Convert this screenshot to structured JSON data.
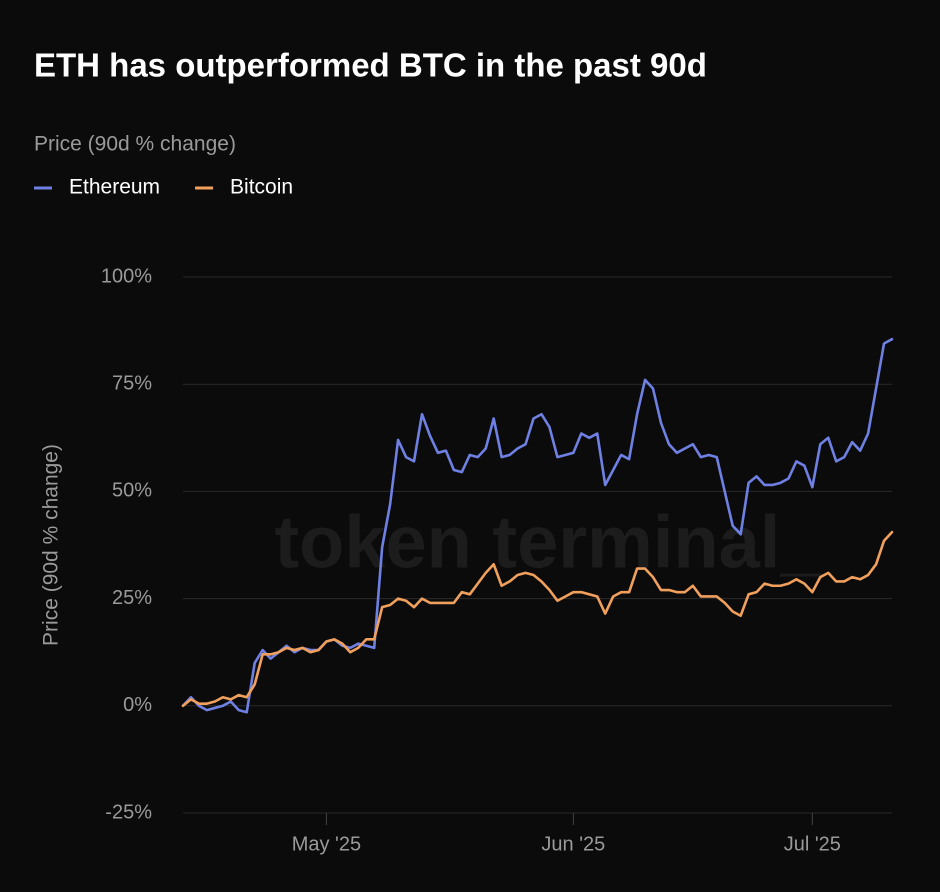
{
  "chart_data": {
    "type": "line",
    "title": "ETH has outperformed BTC in the past 90d",
    "subtitle": "Price (90d % change)",
    "y_label": "Price (90d % change)",
    "watermark": "token terminal_",
    "categories": [
      null,
      null,
      null,
      null,
      null,
      null,
      null,
      null,
      null,
      null,
      null,
      null,
      null,
      null,
      null,
      null,
      null,
      null,
      "May '25",
      null,
      null,
      null,
      null,
      null,
      null,
      null,
      null,
      null,
      null,
      null,
      null,
      null,
      null,
      null,
      null,
      null,
      null,
      null,
      null,
      null,
      null,
      null,
      null,
      null,
      null,
      null,
      null,
      null,
      null,
      "Jun '25",
      null,
      null,
      null,
      null,
      null,
      null,
      null,
      null,
      null,
      null,
      null,
      null,
      null,
      null,
      null,
      null,
      null,
      null,
      null,
      null,
      null,
      null,
      null,
      null,
      null,
      null,
      null,
      null,
      null,
      "Jul '25",
      null,
      null,
      null,
      null,
      null,
      null,
      null,
      null,
      null,
      null
    ],
    "series": [
      {
        "name": "Ethereum",
        "color": "#6f80e3",
        "values": [
          0,
          2,
          0,
          -1,
          -0.5,
          0,
          1,
          -1,
          -1.5,
          10,
          13,
          11,
          12.5,
          14,
          12.5,
          13.5,
          13,
          13,
          15,
          15.5,
          14,
          13.5,
          14.5,
          14,
          13.5,
          37,
          47,
          62,
          58,
          57,
          68,
          63,
          59,
          59.5,
          55,
          54.5,
          58.5,
          58,
          60,
          67,
          58,
          58.5,
          60,
          61,
          67,
          68,
          65,
          58,
          58.5,
          59,
          63.5,
          62.5,
          63.5,
          51.5,
          55,
          58.5,
          57.5,
          68,
          76,
          74,
          66,
          61,
          59,
          60,
          61,
          58,
          58.5,
          58,
          50,
          42,
          40,
          52,
          53.5,
          51.5,
          51.5,
          52,
          53,
          57,
          56,
          51,
          61,
          62.5,
          57,
          58,
          61.5,
          59.5,
          63.5,
          74,
          84.5,
          85.5
        ]
      },
      {
        "name": "Bitcoin",
        "color": "#f0a05c",
        "values": [
          0,
          1.5,
          0.5,
          0.5,
          1,
          2,
          1.5,
          2.5,
          2,
          5,
          12,
          12,
          12.5,
          13.5,
          13,
          13.5,
          12.5,
          13,
          15,
          15.5,
          14.5,
          12.5,
          13.5,
          15.5,
          15.5,
          23,
          23.5,
          25,
          24.5,
          23,
          25,
          24,
          24,
          24,
          24,
          26.5,
          26,
          28.5,
          31,
          33,
          28,
          29,
          30.5,
          31,
          30.5,
          29,
          27,
          24.5,
          25.5,
          26.5,
          26.5,
          26,
          25.5,
          21.5,
          25.5,
          26.5,
          26.5,
          32,
          32,
          30,
          27,
          27,
          26.5,
          26.5,
          28,
          25.5,
          25.5,
          25.5,
          24,
          22,
          21,
          26,
          26.5,
          28.5,
          28,
          28,
          28.5,
          29.5,
          28.5,
          26.5,
          30,
          31,
          29,
          29,
          30,
          29.5,
          30.5,
          33,
          38.5,
          40.5
        ]
      }
    ],
    "ylim": [
      -25,
      100
    ],
    "yticks": [
      {
        "value": -25,
        "label": "-25%"
      },
      {
        "value": 0,
        "label": "0%"
      },
      {
        "value": 25,
        "label": "25%"
      },
      {
        "value": 50,
        "label": "50%"
      },
      {
        "value": 75,
        "label": "75%"
      },
      {
        "value": 100,
        "label": "100%"
      }
    ],
    "grid": true
  }
}
